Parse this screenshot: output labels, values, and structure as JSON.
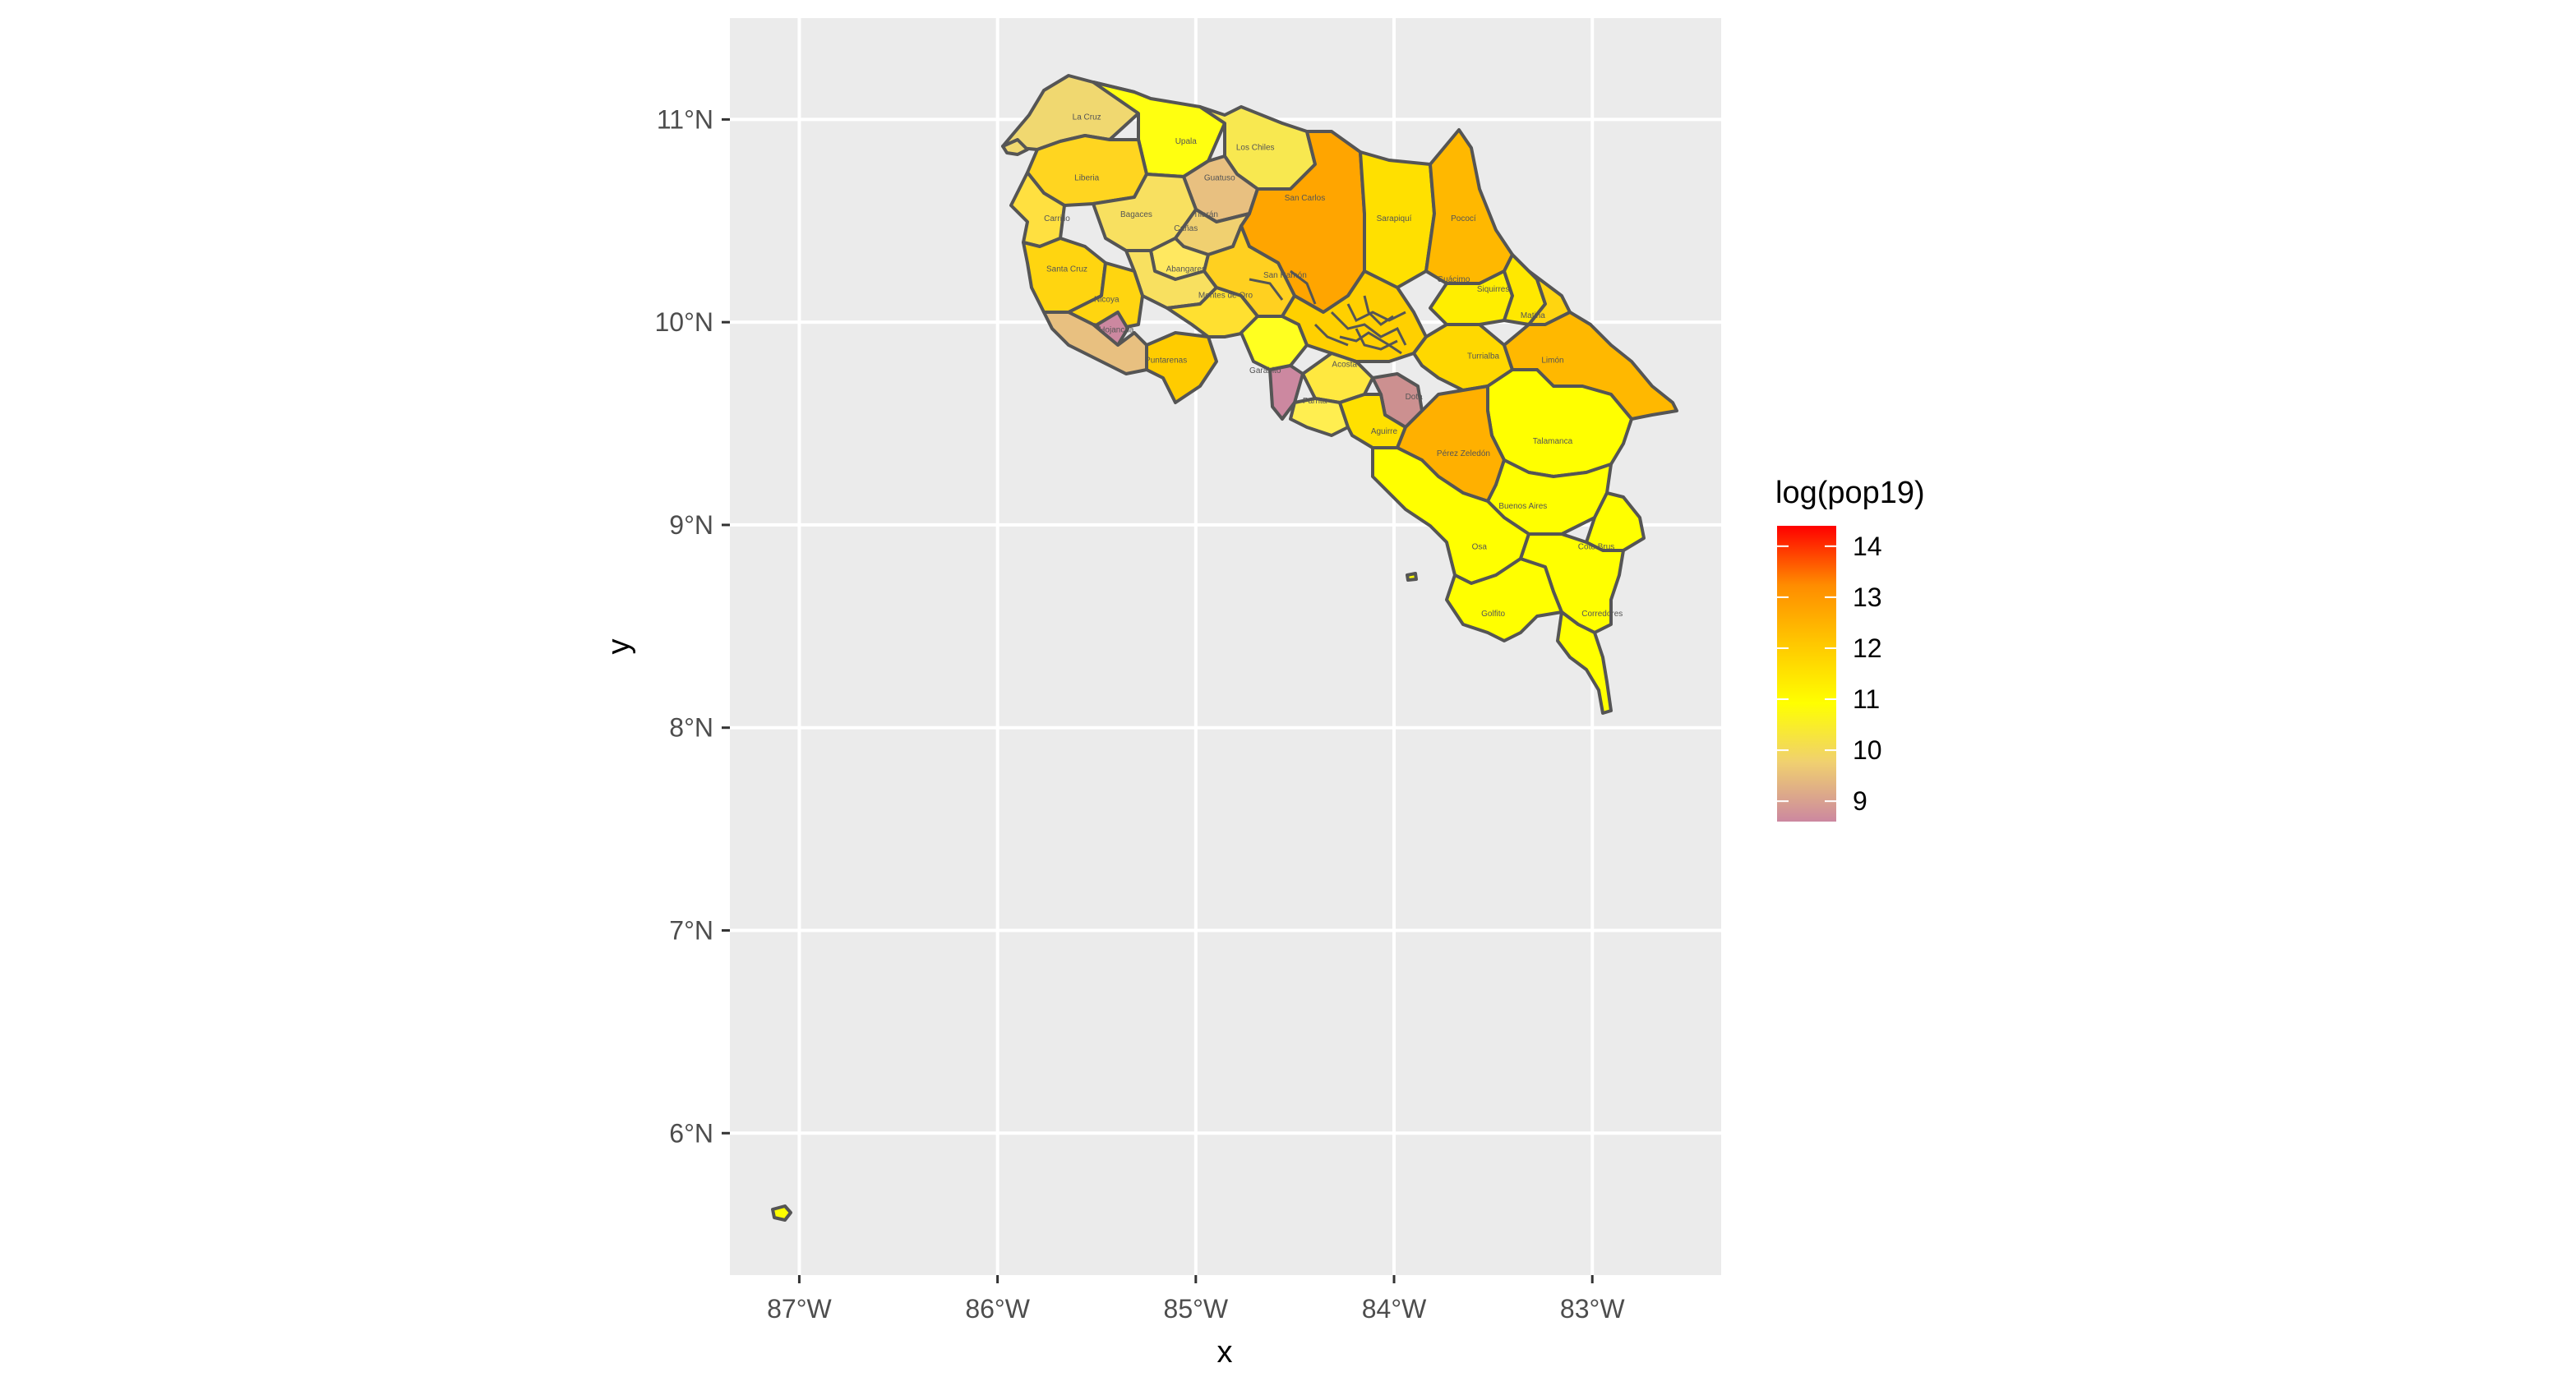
{
  "map": {
    "colors": {
      "panel_bg": "#ebebeb",
      "grid": "#ffffff",
      "border": "#555555",
      "gradient_stops": [
        "#cc88a0",
        "#f0d070",
        "#ffff00",
        "#ffc800",
        "#ff8c00",
        "#ff0000"
      ]
    },
    "x_axis": {
      "title": "x",
      "ticks": [
        {
          "value": -87,
          "label": "87°W"
        },
        {
          "value": -86,
          "label": "86°W"
        },
        {
          "value": -85,
          "label": "85°W"
        },
        {
          "value": -84,
          "label": "84°W"
        },
        {
          "value": -83,
          "label": "83°W"
        }
      ],
      "range": [
        -87.35,
        -82.35
      ]
    },
    "y_axis": {
      "title": "y",
      "ticks": [
        {
          "value": 6,
          "label": "6°N"
        },
        {
          "value": 7,
          "label": "7°N"
        },
        {
          "value": 8,
          "label": "8°N"
        },
        {
          "value": 9,
          "label": "9°N"
        },
        {
          "value": 10,
          "label": "10°N"
        },
        {
          "value": 11,
          "label": "11°N"
        }
      ],
      "range": [
        5.3,
        11.5
      ]
    },
    "legend": {
      "title": "log(pop19)",
      "min": 8.6,
      "max": 14.4,
      "ticks": [
        {
          "value": 9,
          "label": "9"
        },
        {
          "value": 10,
          "label": "10"
        },
        {
          "value": 11,
          "label": "11"
        },
        {
          "value": 12,
          "label": "12"
        },
        {
          "value": 13,
          "label": "13"
        },
        {
          "value": 14,
          "label": "14"
        }
      ]
    },
    "cantons": [
      {
        "name": "La Cruz",
        "value": 10.2,
        "lon": -85.55,
        "lat": 11.0
      },
      {
        "name": "Upala",
        "value": 10.8,
        "lon": -85.05,
        "lat": 10.88
      },
      {
        "name": "Los Chiles",
        "value": 10.5,
        "lon": -84.7,
        "lat": 10.85
      },
      {
        "name": "Liberia",
        "value": 11.2,
        "lon": -85.55,
        "lat": 10.7
      },
      {
        "name": "Guatuso",
        "value": 9.8,
        "lon": -84.88,
        "lat": 10.7
      },
      {
        "name": "San Carlos",
        "value": 12.2,
        "lon": -84.45,
        "lat": 10.6
      },
      {
        "name": "Sarapiquí",
        "value": 11.1,
        "lon": -84.0,
        "lat": 10.5
      },
      {
        "name": "Pococí",
        "value": 11.9,
        "lon": -83.65,
        "lat": 10.5
      },
      {
        "name": "Carrillo",
        "value": 10.5,
        "lon": -85.7,
        "lat": 10.5
      },
      {
        "name": "Bagaces",
        "value": 10.3,
        "lon": -85.3,
        "lat": 10.52
      },
      {
        "name": "Tilarán",
        "value": 10.0,
        "lon": -84.95,
        "lat": 10.52
      },
      {
        "name": "Cañas",
        "value": 10.3,
        "lon": -85.05,
        "lat": 10.45
      },
      {
        "name": "Santa Cruz",
        "value": 11.0,
        "lon": -85.65,
        "lat": 10.25
      },
      {
        "name": "Abangares",
        "value": 9.9,
        "lon": -85.05,
        "lat": 10.25
      },
      {
        "name": "San Ramón",
        "value": 11.4,
        "lon": -84.55,
        "lat": 10.22
      },
      {
        "name": "Nicoya",
        "value": 10.9,
        "lon": -85.45,
        "lat": 10.1
      },
      {
        "name": "Montes de Oro",
        "value": 9.6,
        "lon": -84.85,
        "lat": 10.12
      },
      {
        "name": "Guácimo",
        "value": 10.9,
        "lon": -83.7,
        "lat": 10.2
      },
      {
        "name": "Siquirres",
        "value": 11.0,
        "lon": -83.5,
        "lat": 10.15
      },
      {
        "name": "Matina",
        "value": 10.6,
        "lon": -83.3,
        "lat": 10.02
      },
      {
        "name": "Hojancha",
        "value": 9.1,
        "lon": -85.4,
        "lat": 9.95
      },
      {
        "name": "Puntarenas",
        "value": 11.8,
        "lon": -85.15,
        "lat": 9.8
      },
      {
        "name": "Garabito",
        "value": 9.6,
        "lon": -84.65,
        "lat": 9.75
      },
      {
        "name": "Acosta",
        "value": 10.0,
        "lon": -84.25,
        "lat": 9.78
      },
      {
        "name": "Turrialba",
        "value": 11.3,
        "lon": -83.55,
        "lat": 9.82
      },
      {
        "name": "Limón",
        "value": 11.6,
        "lon": -83.2,
        "lat": 9.8
      },
      {
        "name": "Parrita",
        "value": 9.8,
        "lon": -84.4,
        "lat": 9.6
      },
      {
        "name": "Dota",
        "value": 9.0,
        "lon": -83.9,
        "lat": 9.62
      },
      {
        "name": "Aguirre",
        "value": 10.3,
        "lon": -84.05,
        "lat": 9.45
      },
      {
        "name": "Pérez Zeledón",
        "value": 11.9,
        "lon": -83.65,
        "lat": 9.34
      },
      {
        "name": "Talamanca",
        "value": 10.6,
        "lon": -83.2,
        "lat": 9.4
      },
      {
        "name": "Buenos Aires",
        "value": 10.9,
        "lon": -83.35,
        "lat": 9.08
      },
      {
        "name": "Osa",
        "value": 10.2,
        "lon": -83.57,
        "lat": 8.88
      },
      {
        "name": "Coto Brus",
        "value": 10.7,
        "lon": -82.98,
        "lat": 8.88
      },
      {
        "name": "Golfito",
        "value": 10.6,
        "lon": -83.5,
        "lat": 8.55
      },
      {
        "name": "Corredores",
        "value": 10.7,
        "lon": -82.95,
        "lat": 8.55
      }
    ]
  }
}
